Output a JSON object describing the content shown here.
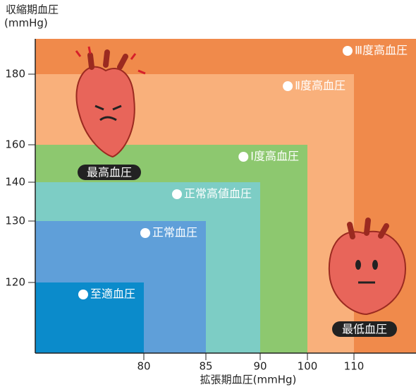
{
  "chart_data": {
    "type": "region",
    "y_label_lines": [
      "収縮期血圧",
      "(mmHg)"
    ],
    "x_label": "拡張期血圧(mmHg)",
    "xticks": [
      80,
      85,
      90,
      100,
      110
    ],
    "yticks": [
      120,
      130,
      140,
      160,
      180
    ],
    "regions": [
      {
        "name": "至適血圧",
        "x": 80,
        "y": 120,
        "color": "#0b8bcb"
      },
      {
        "name": "正常血圧",
        "x": 85,
        "y": 130,
        "color": "#5f9fd9"
      },
      {
        "name": "正常高値血圧",
        "x": 90,
        "y": 140,
        "color": "#7dcdc5"
      },
      {
        "name": "Ⅰ度高血圧",
        "x": 100,
        "y": 160,
        "color": "#8dc86f"
      },
      {
        "name": "Ⅱ度高血圧",
        "x": 110,
        "y": 180,
        "color": "#f9b07b"
      },
      {
        "name": "Ⅲ度高血圧",
        "x": null,
        "y": null,
        "color": "#f08a4b"
      }
    ],
    "annotations": [
      "最高血圧",
      "最低血圧"
    ]
  }
}
